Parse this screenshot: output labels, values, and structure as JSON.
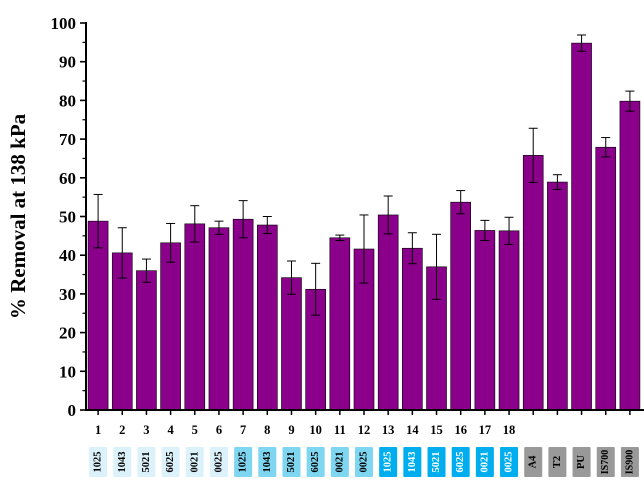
{
  "chart_data": {
    "type": "bar",
    "ylabel": "% Removal at 138 kPa",
    "ylim": [
      0,
      100
    ],
    "yticks": [
      0,
      10,
      20,
      30,
      40,
      50,
      60,
      70,
      80,
      90,
      100
    ],
    "grid": false,
    "bar_color": "#8B008B",
    "bars": [
      {
        "num": "1",
        "tag": "1025",
        "value": 48.8,
        "err": 6.9,
        "tag_color": "#DCF2FB",
        "tag_text": "#000000"
      },
      {
        "num": "2",
        "tag": "1043",
        "value": 40.6,
        "err": 6.5,
        "tag_color": "#DCF2FB",
        "tag_text": "#000000"
      },
      {
        "num": "3",
        "tag": "5021",
        "value": 36.0,
        "err": 3.0,
        "tag_color": "#DCF2FB",
        "tag_text": "#000000"
      },
      {
        "num": "4",
        "tag": "6025",
        "value": 43.2,
        "err": 5.0,
        "tag_color": "#DCF2FB",
        "tag_text": "#000000"
      },
      {
        "num": "5",
        "tag": "0021",
        "value": 48.1,
        "err": 4.7,
        "tag_color": "#DCF2FB",
        "tag_text": "#000000"
      },
      {
        "num": "6",
        "tag": "0025",
        "value": 47.1,
        "err": 1.7,
        "tag_color": "#DCF2FB",
        "tag_text": "#000000"
      },
      {
        "num": "7",
        "tag": "1025",
        "value": 49.3,
        "err": 4.8,
        "tag_color": "#7FD6F0",
        "tag_text": "#000000"
      },
      {
        "num": "8",
        "tag": "1043",
        "value": 47.8,
        "err": 2.2,
        "tag_color": "#7FD6F0",
        "tag_text": "#000000"
      },
      {
        "num": "9",
        "tag": "5021",
        "value": 34.2,
        "err": 4.3,
        "tag_color": "#7FD6F0",
        "tag_text": "#000000"
      },
      {
        "num": "10",
        "tag": "6025",
        "value": 31.2,
        "err": 6.7,
        "tag_color": "#7FD6F0",
        "tag_text": "#000000"
      },
      {
        "num": "11",
        "tag": "0021",
        "value": 44.5,
        "err": 0.7,
        "tag_color": "#7FD6F0",
        "tag_text": "#000000"
      },
      {
        "num": "12",
        "tag": "0025",
        "value": 41.6,
        "err": 8.8,
        "tag_color": "#7FD6F0",
        "tag_text": "#000000"
      },
      {
        "num": "13",
        "tag": "1025",
        "value": 50.4,
        "err": 4.9,
        "tag_color": "#00AEEF",
        "tag_text": "#ffffff"
      },
      {
        "num": "14",
        "tag": "1043",
        "value": 41.8,
        "err": 4.0,
        "tag_color": "#00AEEF",
        "tag_text": "#ffffff"
      },
      {
        "num": "15",
        "tag": "5021",
        "value": 37.0,
        "err": 8.4,
        "tag_color": "#00AEEF",
        "tag_text": "#ffffff"
      },
      {
        "num": "16",
        "tag": "6025",
        "value": 53.7,
        "err": 3.0,
        "tag_color": "#00AEEF",
        "tag_text": "#ffffff"
      },
      {
        "num": "17",
        "tag": "0021",
        "value": 46.4,
        "err": 2.6,
        "tag_color": "#00AEEF",
        "tag_text": "#ffffff"
      },
      {
        "num": "18",
        "tag": "0025",
        "value": 46.3,
        "err": 3.5,
        "tag_color": "#00AEEF",
        "tag_text": "#ffffff"
      },
      {
        "num": "",
        "tag": "A4",
        "value": 65.8,
        "err": 7.0,
        "tag_color": "#999999",
        "tag_text": "#000000"
      },
      {
        "num": "",
        "tag": "T2",
        "value": 58.9,
        "err": 1.9,
        "tag_color": "#999999",
        "tag_text": "#000000"
      },
      {
        "num": "",
        "tag": "PU",
        "value": 94.8,
        "err": 2.1,
        "tag_color": "#999999",
        "tag_text": "#000000"
      },
      {
        "num": "",
        "tag": "IS700",
        "value": 67.9,
        "err": 2.5,
        "tag_color": "#999999",
        "tag_text": "#000000"
      },
      {
        "num": "",
        "tag": "IS900",
        "value": 79.8,
        "err": 2.6,
        "tag_color": "#999999",
        "tag_text": "#000000"
      }
    ]
  }
}
